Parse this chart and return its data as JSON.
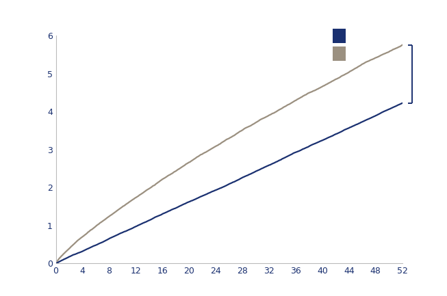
{
  "title": "",
  "xlim": [
    0,
    52
  ],
  "ylim": [
    0,
    6
  ],
  "xticks": [
    0,
    4,
    8,
    12,
    16,
    20,
    24,
    28,
    32,
    36,
    40,
    44,
    48,
    52
  ],
  "yticks": [
    0,
    1,
    2,
    3,
    4,
    5,
    6
  ],
  "color_ideg": "#1a3070",
  "color_iglar": "#9b9080",
  "legend_color_ideg": "#1a3070",
  "legend_color_iglar": "#9b9080",
  "ideg_end": 4.22,
  "iglar_end": 5.75,
  "background_color": "#ffffff",
  "figsize": [
    6.53,
    4.33
  ],
  "dpi": 100
}
